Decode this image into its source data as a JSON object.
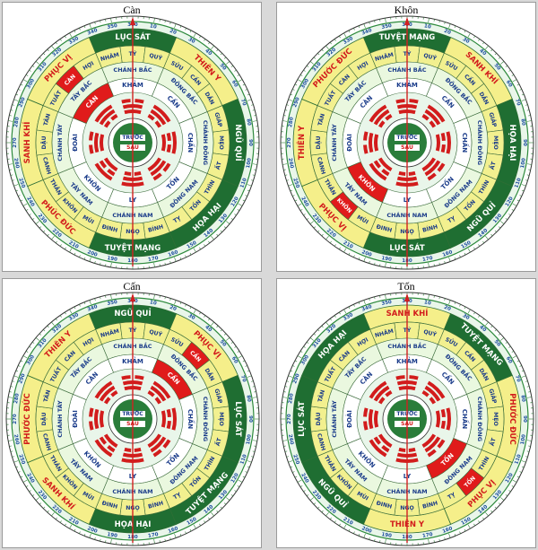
{
  "panels": [
    {
      "title": "Càn",
      "outer_ring": [
        "LỤC SÁT",
        "THIÊN Y",
        "NGŨ QUỈ",
        "HỌA HẠI",
        "TUYỆT MẠNG",
        "PHÚC ĐỨC",
        "SANH KHÍ",
        "PHỤC VỊ"
      ],
      "highlight": "CÀN"
    },
    {
      "title": "Khôn",
      "outer_ring": [
        "TUYỆT MẠNG",
        "SANH KHÍ",
        "HỌA HẠI",
        "NGŨ QUỈ",
        "LỤC SÁT",
        "PHỤC VỊ",
        "THIÊN Y",
        "PHƯỚC ĐỨC"
      ],
      "highlight": "KHÔN"
    },
    {
      "title": "Cấn",
      "outer_ring": [
        "NGŨ QUỈ",
        "PHỤC VỊ",
        "LỤC SÁT",
        "TUYỆT MẠNG",
        "HỌA HẠI",
        "SANH KHÍ",
        "PHƯỚC ĐỨC",
        "THIÊN Y"
      ],
      "highlight": "CẤN"
    },
    {
      "title": "Tốn",
      "outer_ring": [
        "SANH KHÍ",
        "TUYỆT MẠNG",
        "PHƯỚC ĐỨC",
        "PHỤC VỊ",
        "THIÊN Y",
        "NGŨ QUỈ",
        "LỤC SÁT",
        "HỌA HẠI"
      ],
      "highlight": "TỐN"
    }
  ],
  "directions": [
    "CHÁNH BẮC",
    "ĐÔNG BẮC",
    "CHÁNH ĐÔNG",
    "ĐÔNG NAM",
    "CHÁNH NAM",
    "TÂY NAM",
    "CHÁNH TÂY",
    "TÂY BẮC"
  ],
  "trigrams": [
    "KHẢM",
    "CẤN",
    "CHẤN",
    "TỐN",
    "LY",
    "KHÔN",
    "ĐOÀI",
    "CÀN"
  ],
  "mountains": [
    "NHÂM",
    "TÝ",
    "QUÝ",
    "SỬU",
    "CẤN",
    "DẦN",
    "GIÁP",
    "MẸO",
    "ẤT",
    "THÌN",
    "TỐN",
    "TỴ",
    "BÍNH",
    "NGỌ",
    "ĐINH",
    "MÙI",
    "KHÔN",
    "THÂN",
    "CANH",
    "DẬU",
    "TÂN",
    "TUẤT",
    "CÀN",
    "HỢI"
  ],
  "center": {
    "top": "TRƯỚC",
    "bottom": "SAU"
  },
  "degree_labels": [
    "360",
    "10",
    "20",
    "30",
    "40",
    "50",
    "60",
    "70",
    "80",
    "90",
    "100",
    "110",
    "120",
    "130",
    "140",
    "150",
    "160",
    "170",
    "180",
    "190",
    "200",
    "210",
    "220",
    "230",
    "240",
    "250",
    "260",
    "270",
    "280",
    "290",
    "300",
    "310",
    "320",
    "330",
    "340",
    "350"
  ],
  "colors": {
    "good": "#f5ef8a",
    "bad": "#1f6e32",
    "mountain_ring": "#f2f08f",
    "highlight": "#e01b1b",
    "needle": "#d22020",
    "center": "#2a7d3a"
  }
}
